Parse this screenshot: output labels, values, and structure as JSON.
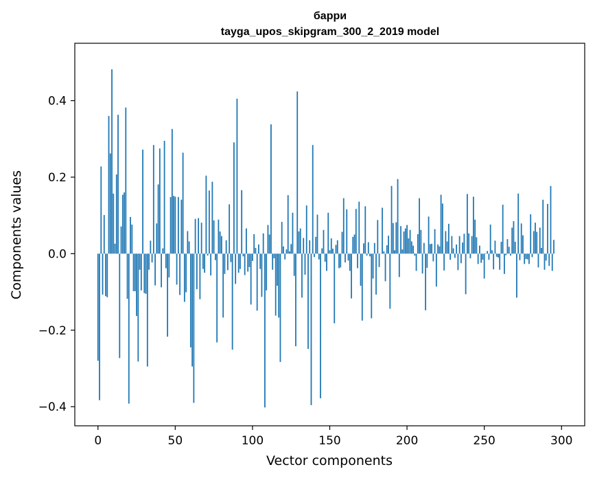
{
  "chart_data": {
    "type": "bar",
    "title": "барри",
    "subtitle": "tayga_upos_skipgram_300_2_2019 model",
    "xlabel": "Vector components",
    "ylabel": "Components values",
    "xlim": [
      -15,
      315
    ],
    "ylim": [
      -0.45,
      0.55
    ],
    "xticks": [
      0,
      50,
      100,
      150,
      200,
      250,
      300
    ],
    "yticks": [
      -0.4,
      -0.2,
      0.0,
      0.2,
      0.4
    ],
    "ytick_labels": [
      "−0.4",
      "−0.2",
      "0.0",
      "0.2",
      "0.4"
    ],
    "bar_color": "#1f77b4",
    "grid": false,
    "values": [
      -0.28,
      -0.383,
      0.228,
      -0.107,
      0.101,
      -0.111,
      -0.114,
      0.36,
      0.262,
      0.482,
      0.157,
      0.026,
      0.207,
      0.363,
      -0.273,
      0.071,
      0.154,
      0.16,
      0.382,
      -0.118,
      -0.392,
      0.096,
      0.076,
      -0.098,
      -0.098,
      -0.163,
      -0.282,
      -0.042,
      -0.096,
      0.272,
      -0.103,
      -0.105,
      -0.295,
      -0.042,
      0.034,
      -0.023,
      0.284,
      -0.083,
      0.079,
      0.181,
      0.275,
      -0.088,
      0.014,
      0.295,
      -0.038,
      -0.217,
      -0.062,
      0.148,
      0.326,
      0.151,
      0.149,
      -0.081,
      0.148,
      -0.108,
      0.141,
      0.264,
      -0.126,
      -0.101,
      0.059,
      0.032,
      -0.245,
      -0.295,
      -0.39,
      0.091,
      -0.093,
      0.093,
      -0.119,
      0.081,
      -0.04,
      -0.05,
      0.204,
      -0.005,
      0.165,
      -0.057,
      0.188,
      0.087,
      -0.017,
      -0.232,
      0.089,
      0.058,
      0.046,
      -0.167,
      -0.053,
      0.035,
      -0.043,
      0.129,
      -0.022,
      -0.251,
      0.291,
      -0.079,
      0.405,
      -0.05,
      -0.04,
      0.166,
      -0.007,
      -0.056,
      0.066,
      -0.047,
      -0.035,
      -0.133,
      -0.019,
      0.051,
      0.015,
      -0.149,
      0.024,
      -0.04,
      -0.113,
      0.053,
      -0.402,
      -0.096,
      0.075,
      0.05,
      0.338,
      -0.042,
      -0.012,
      -0.162,
      -0.084,
      -0.167,
      -0.283,
      0.083,
      0.019,
      -0.015,
      0.011,
      0.153,
      0.006,
      0.025,
      0.107,
      -0.058,
      -0.242,
      0.424,
      0.058,
      0.066,
      -0.115,
      0.041,
      -0.055,
      0.126,
      -0.249,
      0.035,
      -0.396,
      0.284,
      -0.009,
      0.044,
      0.102,
      -0.015,
      -0.378,
      0.014,
      0.062,
      -0.021,
      -0.045,
      0.107,
      0.009,
      0.04,
      0.013,
      -0.182,
      0.023,
      0.035,
      -0.038,
      -0.036,
      0.057,
      0.145,
      -0.023,
      0.116,
      -0.018,
      -0.045,
      -0.117,
      0.044,
      0.05,
      0.117,
      -0.038,
      0.136,
      -0.084,
      -0.175,
      0.027,
      0.124,
      -0.005,
      0.03,
      -0.007,
      -0.169,
      -0.065,
      0.028,
      -0.107,
      0.088,
      -0.035,
      0.0,
      0.12,
      0.006,
      -0.072,
      0.022,
      0.047,
      -0.144,
      0.177,
      0.08,
      0.009,
      0.082,
      0.195,
      -0.061,
      0.072,
      0.011,
      0.058,
      0.066,
      0.075,
      0.04,
      0.062,
      0.032,
      0.021,
      -0.005,
      -0.045,
      0.051,
      0.145,
      0.062,
      -0.052,
      0.028,
      -0.148,
      -0.037,
      0.097,
      0.025,
      0.026,
      -0.02,
      0.064,
      -0.086,
      0.024,
      0.019,
      0.154,
      0.131,
      -0.044,
      0.059,
      0.032,
      0.078,
      -0.016,
      0.046,
      0.014,
      -0.011,
      0.024,
      -0.043,
      0.046,
      -0.025,
      0.029,
      0.052,
      -0.106,
      0.156,
      0.053,
      -0.012,
      0.046,
      0.149,
      0.089,
      0.043,
      -0.027,
      0.021,
      -0.024,
      -0.016,
      -0.065,
      0.001,
      0.007,
      -0.016,
      0.076,
      0.009,
      -0.041,
      0.034,
      -0.008,
      -0.01,
      -0.042,
      0.031,
      0.128,
      -0.053,
      -0.004,
      0.038,
      0.018,
      -0.005,
      0.068,
      0.085,
      0.031,
      -0.115,
      0.157,
      -0.017,
      0.079,
      0.048,
      -0.027,
      -0.014,
      -0.015,
      -0.027,
      0.103,
      -0.009,
      0.059,
      0.081,
      0.057,
      -0.036,
      0.068,
      0.015,
      0.141,
      -0.042,
      -0.018,
      0.13,
      -0.032,
      0.177,
      -0.045,
      0.036
    ]
  }
}
